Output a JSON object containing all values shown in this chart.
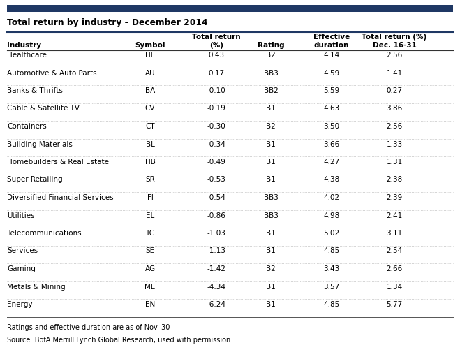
{
  "title": "Total return by industry – December 2014",
  "header_row1": [
    "",
    "",
    "Total return",
    "",
    "Effective",
    "Total return (%)"
  ],
  "header_row2": [
    "Industry",
    "Symbol",
    "(%)",
    "Rating",
    "duration",
    "Dec. 16-31"
  ],
  "rows": [
    [
      "Healthcare",
      "HL",
      "0.43",
      "B2",
      "4.14",
      "2.56"
    ],
    [
      "Automotive & Auto Parts",
      "AU",
      "0.17",
      "BB3",
      "4.59",
      "1.41"
    ],
    [
      "Banks & Thrifts",
      "BA",
      "-0.10",
      "BB2",
      "5.59",
      "0.27"
    ],
    [
      "Cable & Satellite TV",
      "CV",
      "-0.19",
      "B1",
      "4.63",
      "3.86"
    ],
    [
      "Containers",
      "CT",
      "-0.30",
      "B2",
      "3.50",
      "2.56"
    ],
    [
      "Building Materials",
      "BL",
      "-0.34",
      "B1",
      "3.66",
      "1.33"
    ],
    [
      "Homebuilders & Real Estate",
      "HB",
      "-0.49",
      "B1",
      "4.27",
      "1.31"
    ],
    [
      "Super Retailing",
      "SR",
      "-0.53",
      "B1",
      "4.38",
      "2.38"
    ],
    [
      "Diversified Financial Services",
      "FI",
      "-0.54",
      "BB3",
      "4.02",
      "2.39"
    ],
    [
      "Utilities",
      "EL",
      "-0.86",
      "BB3",
      "4.98",
      "2.41"
    ],
    [
      "Telecommunications",
      "TC",
      "-1.03",
      "B1",
      "5.02",
      "3.11"
    ],
    [
      "Services",
      "SE",
      "-1.13",
      "B1",
      "4.85",
      "2.54"
    ],
    [
      "Gaming",
      "AG",
      "-1.42",
      "B2",
      "3.43",
      "2.66"
    ],
    [
      "Metals & Mining",
      "ME",
      "-4.34",
      "B1",
      "3.57",
      "1.34"
    ],
    [
      "Energy",
      "EN",
      "-6.24",
      "B1",
      "4.85",
      "5.77"
    ]
  ],
  "footnote1": "Ratings and effective duration are as of Nov. 30",
  "footnote2": "Source: BofA Merrill Lynch Global Research, used with permission",
  "top_bar_color": "#1f3864",
  "header_line_color": "#1f3864",
  "bg_color": "#ffffff",
  "text_color": "#000000"
}
